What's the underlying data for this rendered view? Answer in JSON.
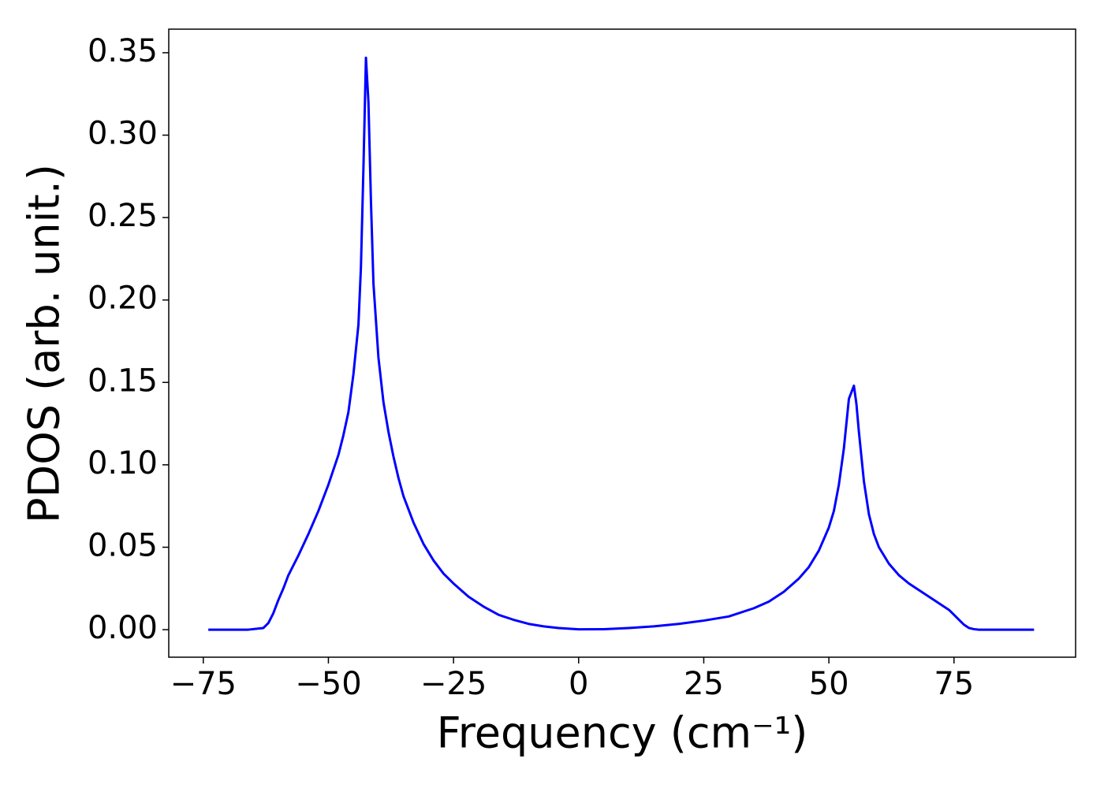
{
  "chart_data": {
    "type": "line",
    "xlabel": "Frequency (cm⁻¹)",
    "ylabel": "PDOS (arb. unit.)",
    "x": [
      -74,
      -70,
      -66,
      -63,
      -62,
      -61,
      -60,
      -59,
      -58,
      -56,
      -54,
      -52,
      -50,
      -48,
      -47,
      -46,
      -45,
      -44,
      -43.5,
      -43,
      -42.5,
      -42,
      -41.5,
      -41,
      -40,
      -39,
      -38,
      -37,
      -36,
      -35,
      -33,
      -31,
      -29,
      -27,
      -25,
      -22,
      -19,
      -16,
      -13,
      -10,
      -7,
      -4,
      0,
      5,
      10,
      15,
      20,
      25,
      30,
      35,
      38,
      41,
      44,
      46,
      48,
      50,
      51,
      52,
      53,
      54,
      55,
      55.5,
      56,
      57,
      58,
      59,
      60,
      62,
      64,
      66,
      68,
      70,
      72,
      74,
      75,
      76,
      77,
      78,
      79,
      80,
      85,
      91
    ],
    "series": [
      {
        "name": "PDOS",
        "color": "#0000ff",
        "values": [
          0,
          0,
          0,
          0.001,
          0.004,
          0.01,
          0.018,
          0.025,
          0.033,
          0.045,
          0.058,
          0.072,
          0.088,
          0.106,
          0.118,
          0.132,
          0.155,
          0.185,
          0.22,
          0.28,
          0.347,
          0.32,
          0.26,
          0.21,
          0.165,
          0.138,
          0.12,
          0.105,
          0.092,
          0.081,
          0.065,
          0.052,
          0.042,
          0.034,
          0.028,
          0.02,
          0.014,
          0.009,
          0.006,
          0.0035,
          0.002,
          0.001,
          0.0002,
          0.0003,
          0.001,
          0.002,
          0.0035,
          0.0055,
          0.008,
          0.013,
          0.017,
          0.023,
          0.031,
          0.038,
          0.048,
          0.062,
          0.072,
          0.088,
          0.11,
          0.14,
          0.148,
          0.137,
          0.12,
          0.09,
          0.07,
          0.058,
          0.05,
          0.04,
          0.033,
          0.028,
          0.024,
          0.02,
          0.016,
          0.012,
          0.009,
          0.006,
          0.003,
          0.001,
          0.0003,
          0,
          0,
          0
        ]
      }
    ],
    "xlim": [
      -81.9,
      99.3
    ],
    "ylim": [
      -0.0167,
      0.3643
    ],
    "xticks": [
      {
        "value": -75,
        "label": "−75"
      },
      {
        "value": -50,
        "label": "−50"
      },
      {
        "value": -25,
        "label": "−25"
      },
      0,
      25,
      50,
      75
    ],
    "yticks": [
      {
        "value": 0,
        "label": "0.00"
      },
      {
        "value": 0.05,
        "label": "0.05"
      },
      {
        "value": 0.1,
        "label": "0.10"
      },
      {
        "value": 0.15,
        "label": "0.15"
      },
      {
        "value": 0.2,
        "label": "0.20"
      },
      {
        "value": 0.25,
        "label": "0.25"
      },
      {
        "value": 0.3,
        "label": "0.30"
      },
      {
        "value": 0.35,
        "label": "0.35"
      }
    ],
    "grid": false
  }
}
